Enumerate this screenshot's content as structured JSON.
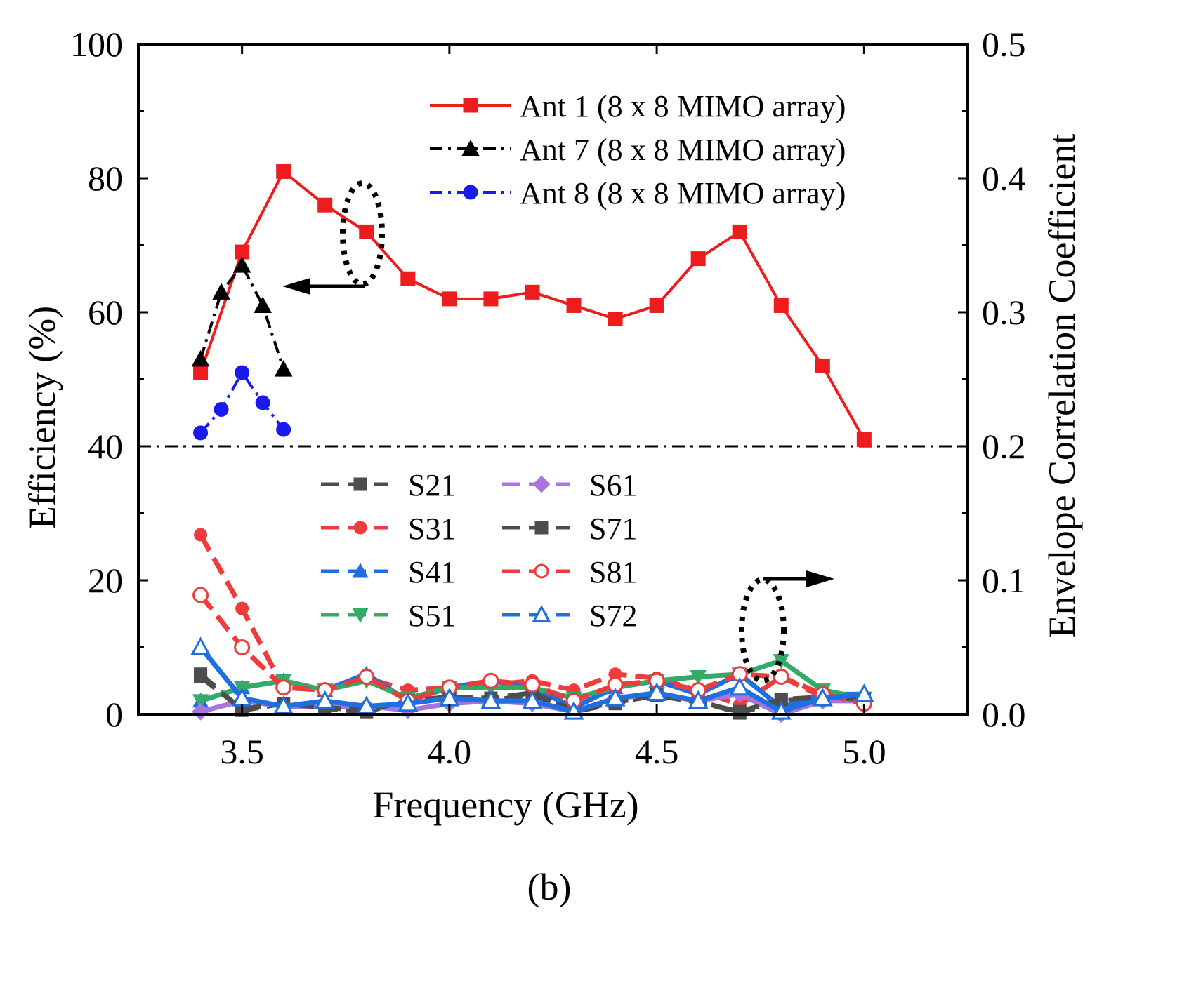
{
  "chart_data": {
    "type": "line",
    "title": "",
    "xlabel": "Frequency (GHz)",
    "ylabel": "Efficiency (%)",
    "y2label": "Envelope Correlation Coefficient",
    "caption": "(b)",
    "xlim": [
      3.25,
      5.25
    ],
    "ylim": [
      0,
      100
    ],
    "y2lim": [
      0,
      0.5
    ],
    "xticks": [
      "3.5",
      "4.0",
      "4.5",
      "5.0"
    ],
    "yticks": [
      "0",
      "20",
      "40",
      "60",
      "80",
      "100"
    ],
    "y2ticks": [
      "0.0",
      "0.1",
      "0.2",
      "0.3",
      "0.4",
      "0.5"
    ],
    "reference_line": {
      "axis": "y",
      "value": 40
    },
    "efficiency_series": [
      {
        "name": "Ant 1 (8 x 8 MIMO array)",
        "color": "#ee1c1c",
        "marker": "square",
        "dash": "solid",
        "x": [
          3.4,
          3.5,
          3.6,
          3.7,
          3.8,
          3.9,
          4.0,
          4.1,
          4.2,
          4.3,
          4.4,
          4.5,
          4.6,
          4.7,
          4.8,
          4.9,
          5.0
        ],
        "y": [
          51,
          69,
          81,
          76,
          72,
          65,
          62,
          62,
          63,
          61,
          59,
          61,
          68,
          72,
          61,
          52,
          41
        ]
      },
      {
        "name": "Ant 7 (8 x 8 MIMO array)",
        "color": "#000000",
        "marker": "triangle",
        "dash": "dashdot",
        "x": [
          3.4,
          3.45,
          3.5,
          3.55,
          3.6
        ],
        "y": [
          53,
          63,
          67,
          61,
          51.5
        ]
      },
      {
        "name": "Ant 8 (8 x 8 MIMO array)",
        "color": "#1a1aee",
        "marker": "circle",
        "dash": "dashdot",
        "x": [
          3.4,
          3.45,
          3.5,
          3.55,
          3.6
        ],
        "y": [
          42,
          45.5,
          51,
          46.5,
          42.5
        ]
      }
    ],
    "ecc_x": [
      3.4,
      3.5,
      3.6,
      3.7,
      3.8,
      3.9,
      4.0,
      4.1,
      4.2,
      4.3,
      4.4,
      4.5,
      4.6,
      4.7,
      4.8,
      4.9,
      5.0
    ],
    "ecc_series": [
      {
        "name": "S21",
        "color": "#4d4d4d",
        "marker": "square",
        "filled": true,
        "y": [
          0.03,
          0.003,
          0.008,
          0.004,
          0.002,
          0.01,
          0.012,
          0.01,
          0.015,
          0.002,
          0.008,
          0.015,
          0.01,
          0.001,
          0.01,
          0.012,
          0.01
        ]
      },
      {
        "name": "S31",
        "color": "#ee3b3b",
        "marker": "circle",
        "filled": true,
        "y": [
          0.134,
          0.079,
          0.02,
          0.018,
          0.027,
          0.018,
          0.02,
          0.022,
          0.025,
          0.018,
          0.03,
          0.027,
          0.018,
          0.007,
          0.028,
          0.013,
          0.01
        ]
      },
      {
        "name": "S41",
        "color": "#1f6fe0",
        "marker": "triangle",
        "filled": true,
        "y": [
          0.01,
          0.02,
          0.025,
          0.018,
          0.03,
          0.01,
          0.02,
          0.025,
          0.02,
          0.005,
          0.02,
          0.025,
          0.015,
          0.03,
          0.005,
          0.015,
          0.015
        ]
      },
      {
        "name": "S51",
        "color": "#33aa66",
        "marker": "triangle-down",
        "filled": true,
        "y": [
          0.01,
          0.02,
          0.025,
          0.018,
          0.025,
          0.012,
          0.02,
          0.02,
          0.02,
          0.012,
          0.02,
          0.025,
          0.028,
          0.03,
          0.04,
          0.018,
          0.012
        ]
      },
      {
        "name": "S61",
        "color": "#a874dd",
        "marker": "diamond",
        "filled": true,
        "y": [
          0.002,
          0.01,
          0.006,
          0.006,
          0.006,
          0.003,
          0.008,
          0.01,
          0.008,
          0.002,
          0.012,
          0.015,
          0.01,
          0.015,
          0.0,
          0.01,
          0.01
        ]
      },
      {
        "name": "S71",
        "color": "#4d4d4d",
        "marker": "square",
        "filled": true,
        "y": [
          0.028,
          0.004,
          0.008,
          0.005,
          0.003,
          0.01,
          0.013,
          0.012,
          0.016,
          0.003,
          0.009,
          0.014,
          0.009,
          0.002,
          0.011,
          0.013,
          0.011
        ]
      },
      {
        "name": "S81",
        "color": "#ee3b3b",
        "marker": "circle",
        "filled": false,
        "y": [
          0.089,
          0.05,
          0.02,
          0.018,
          0.028,
          0.01,
          0.02,
          0.025,
          0.022,
          0.01,
          0.022,
          0.025,
          0.018,
          0.03,
          0.028,
          0.015,
          0.008
        ]
      },
      {
        "name": "S72",
        "color": "#1f6fe0",
        "marker": "triangle",
        "filled": false,
        "y": [
          0.05,
          0.012,
          0.006,
          0.01,
          0.006,
          0.008,
          0.012,
          0.01,
          0.01,
          0.002,
          0.012,
          0.016,
          0.01,
          0.02,
          0.002,
          0.012,
          0.015
        ]
      }
    ]
  }
}
